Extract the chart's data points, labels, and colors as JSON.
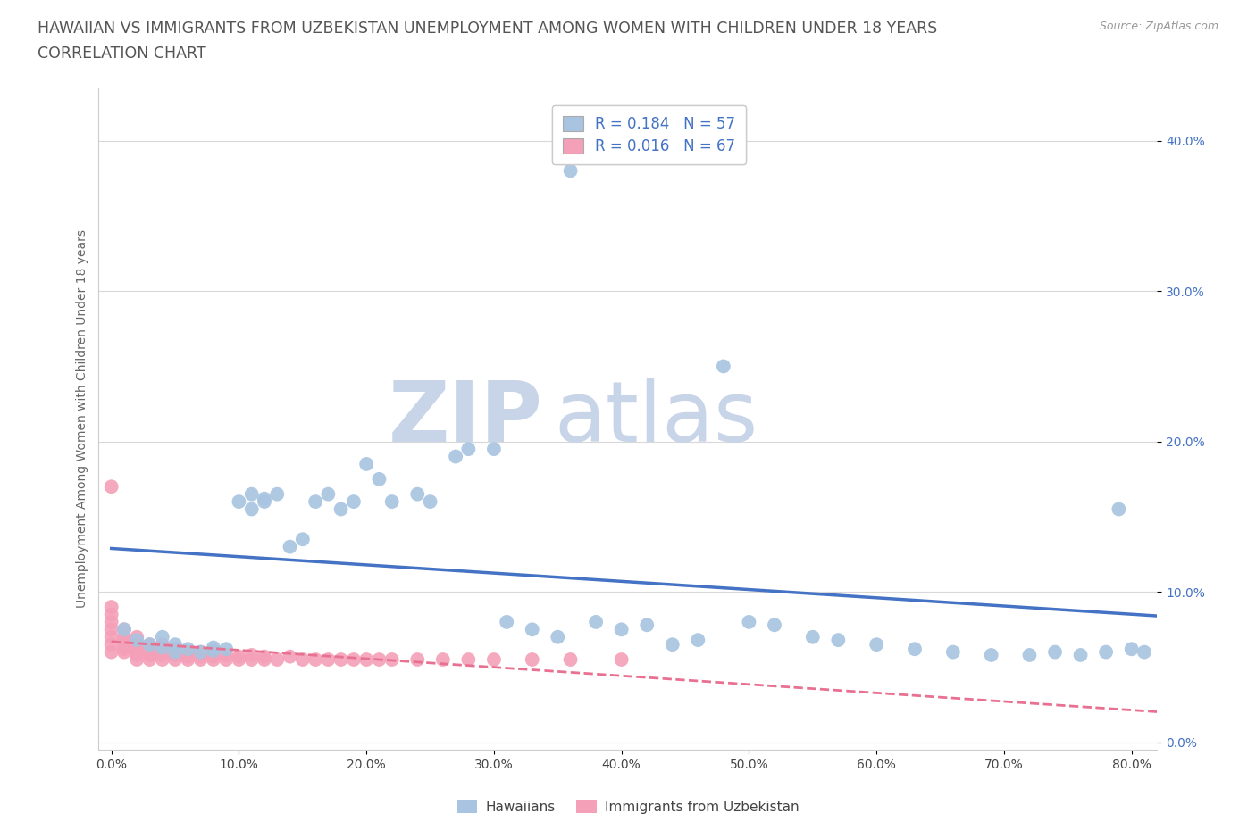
{
  "title_line1": "HAWAIIAN VS IMMIGRANTS FROM UZBEKISTAN UNEMPLOYMENT AMONG WOMEN WITH CHILDREN UNDER 18 YEARS",
  "title_line2": "CORRELATION CHART",
  "source_text": "Source: ZipAtlas.com",
  "ylabel": "Unemployment Among Women with Children Under 18 years",
  "xlim": [
    -0.01,
    0.82
  ],
  "ylim": [
    -0.005,
    0.435
  ],
  "xticks": [
    0.0,
    0.1,
    0.2,
    0.3,
    0.4,
    0.5,
    0.6,
    0.7,
    0.8
  ],
  "xticklabels": [
    "0.0%",
    "10.0%",
    "20.0%",
    "30.0%",
    "40.0%",
    "50.0%",
    "60.0%",
    "70.0%",
    "80.0%"
  ],
  "yticks": [
    0.0,
    0.1,
    0.2,
    0.3,
    0.4
  ],
  "yticklabels": [
    "0.0%",
    "10.0%",
    "20.0%",
    "30.0%",
    "40.0%"
  ],
  "hawaiian_R": 0.184,
  "hawaiian_N": 57,
  "uzbekistan_R": 0.016,
  "uzbekistan_N": 67,
  "hawaiian_color": "#a8c4e0",
  "uzbekistan_color": "#f4a0b8",
  "hawaiian_line_color": "#4472c4",
  "uzbekistan_line_color": "#e87090",
  "background_color": "#ffffff",
  "grid_color": "#d8d8d8",
  "hawaiian_x": [
    0.01,
    0.02,
    0.03,
    0.04,
    0.04,
    0.05,
    0.05,
    0.06,
    0.07,
    0.08,
    0.08,
    0.09,
    0.1,
    0.11,
    0.11,
    0.12,
    0.12,
    0.13,
    0.14,
    0.15,
    0.16,
    0.17,
    0.18,
    0.19,
    0.2,
    0.21,
    0.22,
    0.24,
    0.25,
    0.27,
    0.28,
    0.3,
    0.31,
    0.33,
    0.35,
    0.36,
    0.38,
    0.4,
    0.42,
    0.44,
    0.46,
    0.48,
    0.5,
    0.52,
    0.55,
    0.57,
    0.6,
    0.63,
    0.66,
    0.69,
    0.72,
    0.74,
    0.76,
    0.78,
    0.79,
    0.8,
    0.81
  ],
  "hawaiian_y": [
    0.075,
    0.068,
    0.065,
    0.063,
    0.07,
    0.06,
    0.065,
    0.062,
    0.06,
    0.063,
    0.061,
    0.062,
    0.16,
    0.165,
    0.155,
    0.16,
    0.162,
    0.165,
    0.13,
    0.135,
    0.16,
    0.165,
    0.155,
    0.16,
    0.185,
    0.175,
    0.16,
    0.165,
    0.16,
    0.19,
    0.195,
    0.195,
    0.08,
    0.075,
    0.07,
    0.38,
    0.08,
    0.075,
    0.078,
    0.065,
    0.068,
    0.25,
    0.08,
    0.078,
    0.07,
    0.068,
    0.065,
    0.062,
    0.06,
    0.058,
    0.058,
    0.06,
    0.058,
    0.06,
    0.155,
    0.062,
    0.06
  ],
  "uzbekistan_x": [
    0.0,
    0.0,
    0.0,
    0.0,
    0.0,
    0.0,
    0.0,
    0.0,
    0.01,
    0.01,
    0.01,
    0.01,
    0.01,
    0.01,
    0.02,
    0.02,
    0.02,
    0.02,
    0.02,
    0.02,
    0.03,
    0.03,
    0.03,
    0.03,
    0.03,
    0.04,
    0.04,
    0.04,
    0.04,
    0.05,
    0.05,
    0.05,
    0.05,
    0.06,
    0.06,
    0.06,
    0.07,
    0.07,
    0.07,
    0.08,
    0.08,
    0.08,
    0.09,
    0.09,
    0.1,
    0.1,
    0.11,
    0.11,
    0.12,
    0.12,
    0.13,
    0.14,
    0.15,
    0.16,
    0.17,
    0.18,
    0.19,
    0.2,
    0.21,
    0.22,
    0.24,
    0.26,
    0.28,
    0.3,
    0.33,
    0.36,
    0.4
  ],
  "uzbekistan_y": [
    0.06,
    0.065,
    0.07,
    0.075,
    0.08,
    0.085,
    0.09,
    0.17,
    0.06,
    0.062,
    0.065,
    0.068,
    0.07,
    0.075,
    0.055,
    0.058,
    0.06,
    0.062,
    0.065,
    0.07,
    0.055,
    0.058,
    0.06,
    0.062,
    0.065,
    0.055,
    0.058,
    0.06,
    0.065,
    0.055,
    0.058,
    0.06,
    0.062,
    0.055,
    0.057,
    0.06,
    0.055,
    0.057,
    0.06,
    0.055,
    0.057,
    0.06,
    0.055,
    0.058,
    0.055,
    0.057,
    0.055,
    0.058,
    0.055,
    0.057,
    0.055,
    0.057,
    0.055,
    0.055,
    0.055,
    0.055,
    0.055,
    0.055,
    0.055,
    0.055,
    0.055,
    0.055,
    0.055,
    0.055,
    0.055,
    0.055,
    0.055
  ],
  "watermark_zip": "ZIP",
  "watermark_atlas": "atlas",
  "watermark_color": "#c8d4e8",
  "title_color": "#555555",
  "title_fontsize": 12.5,
  "axis_label_fontsize": 10,
  "tick_fontsize": 10,
  "legend_fontsize": 12,
  "source_fontsize": 9
}
